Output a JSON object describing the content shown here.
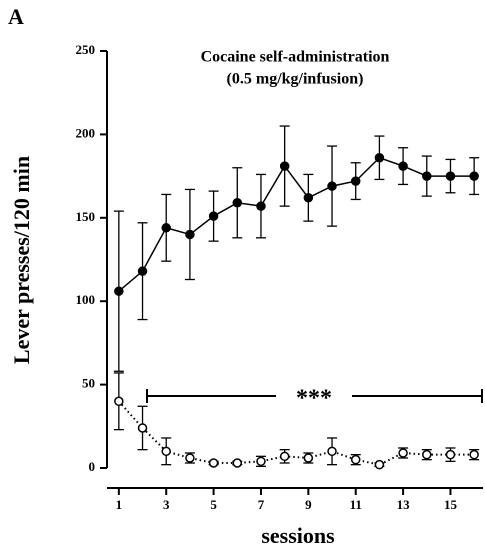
{
  "panel_label": "A",
  "chart_data": {
    "type": "line",
    "title": "Cocaine self-administration",
    "subtitle": "(0.5 mg/kg/infusion)",
    "xlabel": "sessions",
    "ylabel": "Lever presses/120 min",
    "annotation": "***",
    "x": [
      1,
      2,
      3,
      4,
      5,
      6,
      7,
      8,
      9,
      10,
      11,
      12,
      13,
      14,
      15,
      16
    ],
    "series": [
      {
        "color": "#000000",
        "marker": "filled",
        "dash": "solid",
        "values": [
          106,
          118,
          144,
          140,
          151,
          159,
          157,
          181,
          162,
          169,
          172,
          186,
          181,
          175,
          175,
          175
        ],
        "errors": [
          48,
          29,
          20,
          27,
          15,
          21,
          19,
          24,
          14,
          24,
          11,
          13,
          11,
          12,
          10,
          11
        ]
      },
      {
        "color": "#000000",
        "marker": "open",
        "dash": "dotted",
        "values": [
          40,
          24,
          10,
          6,
          3,
          3,
          4,
          7,
          6,
          10,
          5,
          2,
          9,
          8,
          8,
          8
        ],
        "errors": [
          17,
          13,
          8,
          3,
          1,
          1,
          3,
          4,
          3,
          8,
          3,
          1,
          3,
          3,
          4,
          3
        ]
      }
    ],
    "xlim": [
      0.5,
      16.5
    ],
    "xticks": [
      1,
      3,
      5,
      7,
      9,
      11,
      13,
      15
    ],
    "ylim": [
      0,
      250
    ],
    "yticks": [
      0,
      50,
      100,
      150,
      200,
      250
    ]
  }
}
